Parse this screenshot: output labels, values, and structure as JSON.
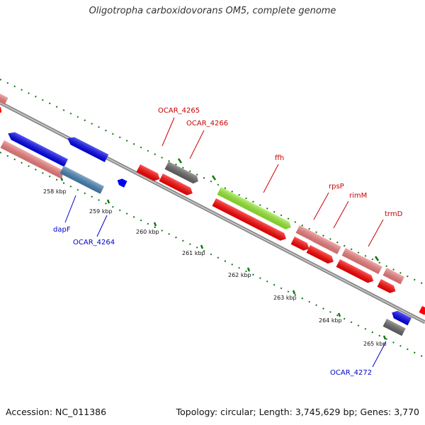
{
  "title": "Oligotropha carboxidovorans OM5, complete genome",
  "footer": {
    "accession": "Accession: NC_011386",
    "summary": "Topology: circular; Length: 3,745,629 bp; Genes: 3,770"
  },
  "tick_labels": [
    "258 kbp",
    "259 kbp",
    "260 kbp",
    "261 kbp",
    "262 kbp",
    "263 kbp",
    "264 kbp",
    "265 kbp"
  ],
  "gene_labels": {
    "ocar_4265": "OCAR_4265",
    "ocar_4266": "OCAR_4266",
    "ffh": "ffh",
    "rpsP": "rpsP",
    "rimM": "rimM",
    "trmD": "trmD",
    "dapF": "dapF",
    "ocar_4264": "OCAR_4264",
    "ocar_4272": "OCAR_4272"
  },
  "colors": {
    "forward_label": "#cc0000",
    "reverse_label": "#0000cc",
    "cds_red": "#ff0000",
    "cds_pink": "#f08080",
    "cds_blue": "#0000ee",
    "cds_steel": "#4682b4",
    "cds_gray": "#666666",
    "cds_green": "#99ee33",
    "tick_green": "#117711",
    "backbone": "#888888"
  }
}
